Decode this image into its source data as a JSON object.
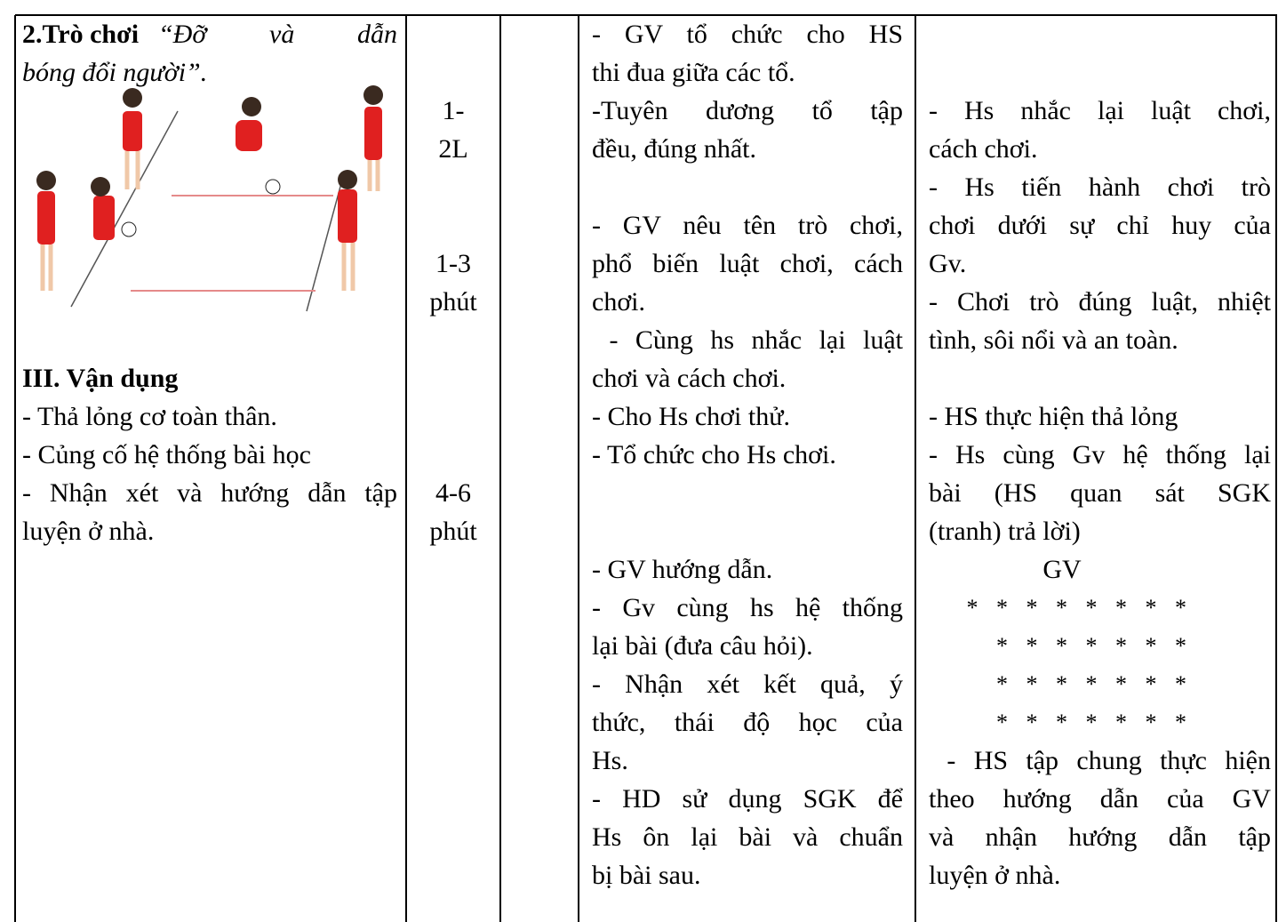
{
  "left": {
    "game_number_title": "2.Trò chơi",
    "game_name_lines": [
      "“Đỡ và dẫn",
      "bóng đổi người”."
    ],
    "section_heading": "III. Vận dụng",
    "section_items": [
      "- Thả lỏng cơ toàn thân.",
      "- Củng cố hệ thống bài học",
      "- Nhận xét và hướng dẫn tập",
      "luyện ở nhà."
    ]
  },
  "time": {
    "blocks": [
      [
        "1-",
        "2L"
      ],
      [
        "1-3",
        "phút"
      ],
      [
        "4-6",
        "phút"
      ]
    ]
  },
  "teacher": {
    "blocks": [
      [
        "- GV tổ chức cho HS",
        "thi đua giữa các tổ.",
        "-Tuyên dương tổ tập",
        "đều, đúng nhất."
      ],
      [
        "- GV nêu tên trò chơi,",
        "phổ biến luật chơi, cách",
        "chơi.",
        " - Cùng hs nhắc lại luật",
        "chơi và cách chơi.",
        "- Cho Hs chơi thử.",
        "- Tổ chức cho Hs chơi."
      ],
      [
        "- GV hướng dẫn.",
        "- Gv cùng hs hệ thống",
        "lại bài (đưa câu hỏi).",
        "- Nhận xét kết quả, ý",
        "thức, thái độ học của",
        "Hs.",
        "- HD sử dụng SGK để",
        "Hs ôn lại bài và chuẩn",
        "bị bài sau."
      ]
    ]
  },
  "student": {
    "blocks": [
      [
        "- Hs nhắc lại luật chơi,",
        "cách chơi.",
        "- Hs tiến hành chơi trò",
        "chơi dưới sự chỉ huy của",
        "Gv.",
        "- Chơi trò đúng luật, nhiệt",
        "tình, sôi nổi và an toàn."
      ],
      [
        "- HS thực hiện thả lỏng",
        "- Hs cùng Gv hệ thống lại",
        "bài (HS quan sát SGK",
        "(tranh) trả lời)"
      ]
    ],
    "formation": {
      "label": "GV",
      "rows": [
        "* * * * * * * *",
        "* * * * * * *",
        "* * * * * * *",
        "* * * * * * *"
      ]
    },
    "closing": [
      " - HS tập chung thực hiện",
      "theo hướng dẫn của GV",
      "và nhận hướng dẫn tập",
      "luyện ở nhà."
    ]
  }
}
